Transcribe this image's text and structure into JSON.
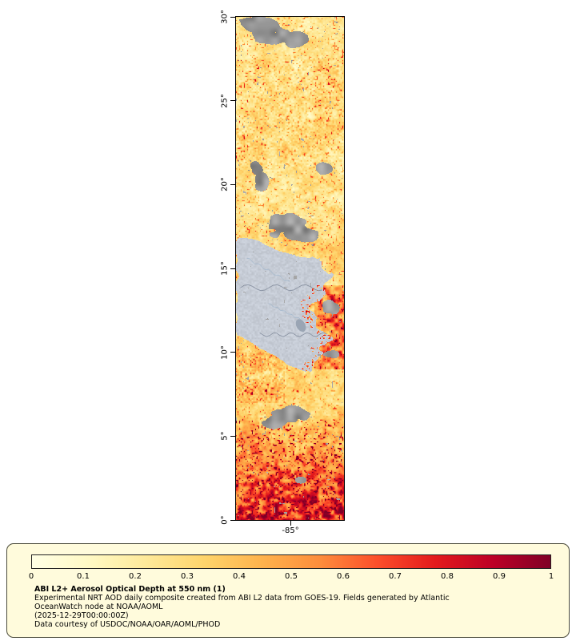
{
  "map": {
    "lat_ticks": [
      {
        "label": "30°",
        "value": 30
      },
      {
        "label": "25°",
        "value": 25
      },
      {
        "label": "20°",
        "value": 20
      },
      {
        "label": "15°",
        "value": 15
      },
      {
        "label": "10°",
        "value": 10
      },
      {
        "label": "5°",
        "value": 5
      },
      {
        "label": "0°",
        "value": 0
      }
    ],
    "lat_range": [
      0,
      30
    ],
    "lon_ticks": [
      {
        "label": "-85°",
        "frac": 0.504
      }
    ],
    "colors": {
      "land": "#c8ced8",
      "nodata_gray": "#8f8f8f",
      "country_border": "#7a8496",
      "river": "#9db4cc",
      "lake": "#9aa5b4"
    }
  },
  "colorbar": {
    "ticks": [
      "0",
      "0.1",
      "0.2",
      "0.3",
      "0.4",
      "0.5",
      "0.6",
      "0.7",
      "0.8",
      "0.9",
      "1"
    ],
    "colors": [
      "#ffffe5",
      "#fff9c4",
      "#fee999",
      "#fed46b",
      "#feb24c",
      "#fd8d3c",
      "#fc4e2a",
      "#e31a1c",
      "#bd0026",
      "#800026"
    ],
    "min": 0,
    "max": 1
  },
  "legend": {
    "title": "ABI L2+ Aerosol Optical Depth at 550 nm (1)",
    "lines": [
      "Experimental NRT AOD daily composite created from ABI L2 data from GOES-19. Fields generated by Atlantic",
      "OceanWatch node at NOAA/AOML",
      "(2025-12-29T00:00:00Z)",
      "Data courtesy of USDOC/NOAA/OAR/AOML/PHOD"
    ]
  }
}
